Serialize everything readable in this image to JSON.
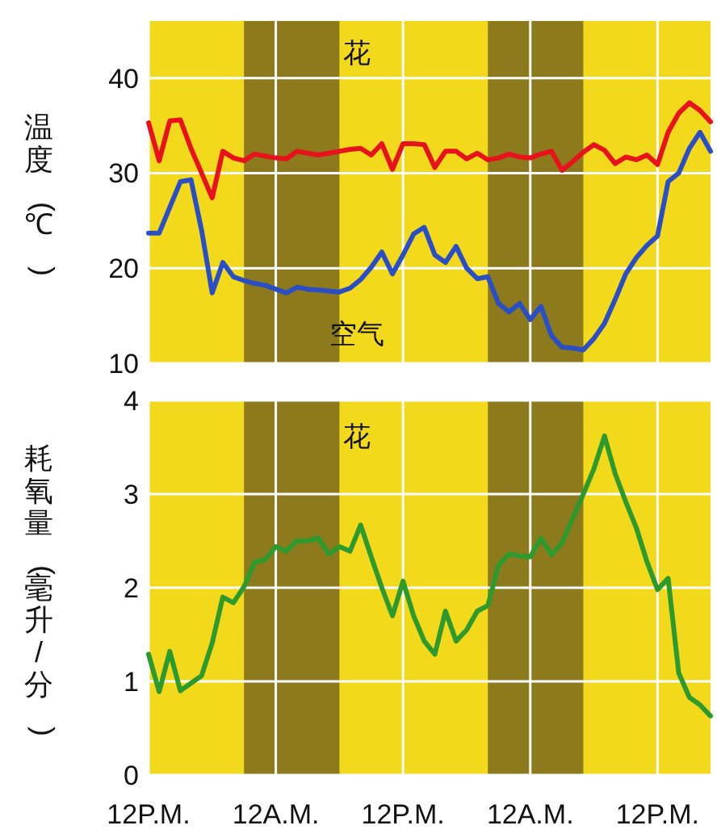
{
  "chart_data": [
    {
      "type": "line",
      "ylabel": "温度(℃)",
      "categories": [
        null,
        null,
        null,
        null,
        null,
        null,
        null,
        null,
        null,
        null,
        null,
        null,
        null,
        null,
        null,
        null,
        null,
        null,
        null,
        null,
        null,
        null,
        null,
        null,
        null,
        null,
        null,
        null,
        null,
        null,
        null,
        null,
        null,
        null,
        null,
        null,
        null,
        null,
        null,
        null,
        null,
        null,
        null,
        null,
        null,
        null,
        null,
        null,
        null,
        null,
        null,
        null,
        null,
        null
      ],
      "ylim": [
        10,
        46
      ],
      "yticks": [
        10,
        20,
        30,
        40
      ],
      "grid": true,
      "series": [
        {
          "name": "花",
          "color": "#e8121c",
          "values": [
            35.3,
            31.3,
            35.5,
            35.6,
            32.6,
            30,
            27.4,
            32.3,
            31.6,
            31.3,
            32,
            31.8,
            31.6,
            31.5,
            32.3,
            32.1,
            31.9,
            32.1,
            32.3,
            32.5,
            32.6,
            31.9,
            33.1,
            30.4,
            33.1,
            33.1,
            33,
            30.6,
            32.3,
            32.3,
            31.5,
            32.1,
            31.4,
            31.6,
            32,
            31.7,
            31.6,
            32,
            32.3,
            30.3,
            31.2,
            32.2,
            33,
            32.4,
            31,
            31.7,
            31.4,
            31.9,
            30.9,
            34.3,
            36.3,
            37.4,
            36.6,
            35.4
          ]
        },
        {
          "name": "空气",
          "color": "#2a4fc4",
          "values": [
            23.7,
            23.7,
            26.4,
            29.1,
            29.3,
            24,
            17.4,
            20.6,
            19.1,
            18.7,
            18.4,
            18.2,
            17.8,
            17.4,
            18,
            17.8,
            17.7,
            17.6,
            17.5,
            17.9,
            18.8,
            20.1,
            21.7,
            19.4,
            21.4,
            23.6,
            24.3,
            21.4,
            20.6,
            22.3,
            20,
            18.9,
            19.1,
            16.3,
            15.4,
            16.3,
            14.6,
            16,
            12.9,
            11.7,
            11.6,
            11.4,
            12.6,
            14.2,
            16.7,
            19.4,
            21.1,
            22.4,
            23.4,
            29.1,
            30,
            32.6,
            34.3,
            32.3
          ]
        }
      ]
    },
    {
      "type": "line",
      "ylabel": "耗氧量(毫升/分)",
      "categories": [
        "12P.M.",
        null,
        null,
        null,
        null,
        null,
        null,
        null,
        null,
        null,
        null,
        null,
        "12A.M.",
        null,
        null,
        null,
        null,
        null,
        null,
        null,
        null,
        null,
        null,
        null,
        "12P.M.",
        null,
        null,
        null,
        null,
        null,
        null,
        null,
        null,
        null,
        null,
        null,
        "12A.M.",
        null,
        null,
        null,
        null,
        null,
        null,
        null,
        null,
        null,
        null,
        null,
        "12P.M.",
        null,
        null,
        null,
        null,
        null
      ],
      "ylim": [
        0,
        4
      ],
      "yticks": [
        0,
        1,
        2,
        3,
        4
      ],
      "grid": true,
      "series": [
        {
          "name": "花",
          "color": "#2e9a2e",
          "values": [
            1.29,
            0.89,
            1.32,
            0.9,
            0.98,
            1.06,
            1.41,
            1.9,
            1.84,
            2.01,
            2.27,
            2.3,
            2.44,
            2.39,
            2.5,
            2.5,
            2.53,
            2.36,
            2.44,
            2.39,
            2.67,
            2.33,
            2.0,
            1.7,
            2.07,
            1.7,
            1.43,
            1.29,
            1.75,
            1.43,
            1.55,
            1.75,
            1.81,
            2.24,
            2.36,
            2.34,
            2.33,
            2.53,
            2.35,
            2.48,
            2.74,
            3.0,
            3.27,
            3.62,
            3.22,
            2.92,
            2.64,
            2.28,
            1.98,
            2.1,
            1.09,
            0.83,
            0.75,
            0.63
          ]
        }
      ]
    }
  ]
}
